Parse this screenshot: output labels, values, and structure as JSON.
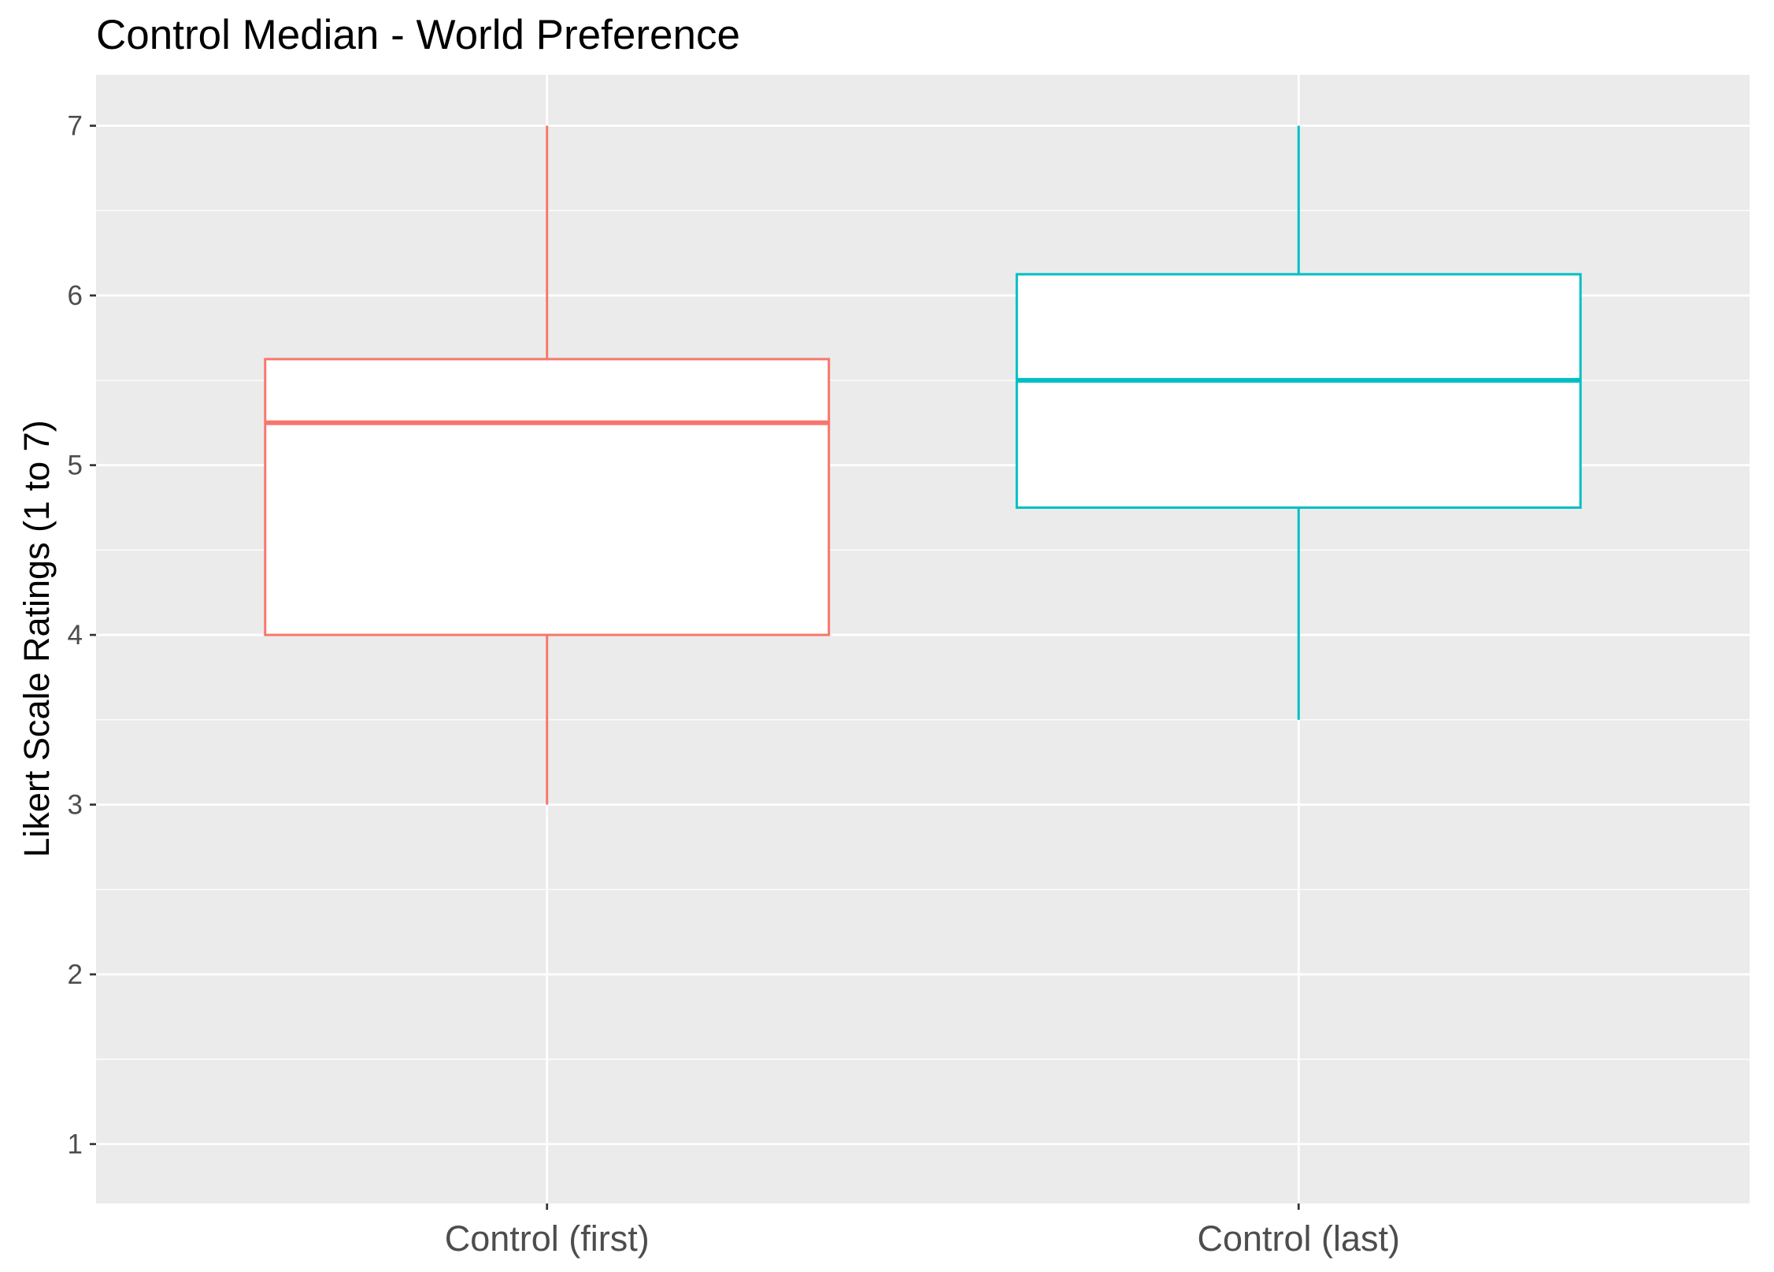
{
  "chart_data": {
    "type": "boxplot",
    "title": "Control Median - World Preference",
    "xlabel": "",
    "ylabel": "Likert Scale Ratings (1 to 7)",
    "ylim": [
      0.65,
      7.3
    ],
    "yticks": [
      1,
      2,
      3,
      4,
      5,
      6,
      7
    ],
    "categories": [
      "Control (first)",
      "Control (last)"
    ],
    "boxes": [
      {
        "category": "Control (first)",
        "min": 3,
        "q1": 4,
        "median": 5.25,
        "q3": 5.625,
        "max": 7,
        "color": "#f8766d"
      },
      {
        "category": "Control (last)",
        "min": 3.5,
        "q1": 4.75,
        "median": 5.5,
        "q3": 6.125,
        "max": 7,
        "color": "#00bfc4"
      }
    ],
    "grid": true,
    "panel_background": "#ebebeb",
    "legend": "none"
  }
}
